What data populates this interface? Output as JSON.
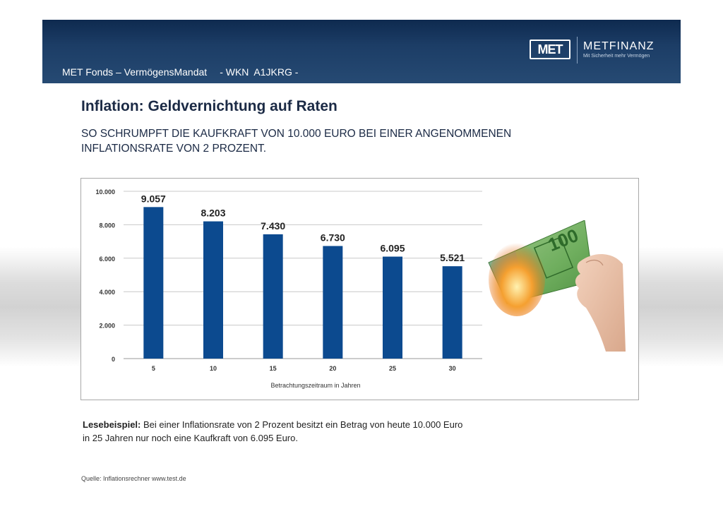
{
  "header": {
    "fund_name": "MET Fonds – VermögensMandat",
    "wkn": "- WKN  A1JKRG -",
    "logo_mark": "MET",
    "logo_name": "METFINANZ",
    "logo_tagline": "Mit Sicherheit mehr Vermögen"
  },
  "title": "Inflation: Geldvernichtung auf Raten",
  "subtitle_line1": "SO SCHRUMPFT DIE KAUFKRAFT VON 10.000 EURO BEI EINER ANGENOMMENEN",
  "subtitle_line2": "INFLATIONSRATE VON 2 PROZENT.",
  "chart_data": {
    "type": "bar",
    "categories": [
      "5",
      "10",
      "15",
      "20",
      "25",
      "30"
    ],
    "values": [
      9057,
      8203,
      7430,
      6730,
      6095,
      5521
    ],
    "value_labels": [
      "9.057",
      "8.203",
      "7.430",
      "6.730",
      "6.095",
      "5.521"
    ],
    "title": "",
    "xlabel": "Betrachtungszeitraum in Jahren",
    "ylabel": "",
    "ylim": [
      0,
      10000
    ],
    "yticks": [
      0,
      2000,
      4000,
      6000,
      8000,
      10000
    ],
    "ytick_labels": [
      "0",
      "2.000",
      "4.000",
      "6.000",
      "8.000",
      "10.000"
    ],
    "grid": true,
    "bar_color": "#0c4a8f"
  },
  "reading_example": {
    "label": "Lesebeispiel:",
    "line1": " Bei einer Inflationsrate von 2 Prozent besitzt ein Betrag von heute 10.000 Euro",
    "line2": "in 25 Jahren nur noch eine Kaufkraft von 6.095 Euro."
  },
  "image": {
    "note_value": "100"
  },
  "source": "Quelle: Inflationsrechner www.test.de"
}
